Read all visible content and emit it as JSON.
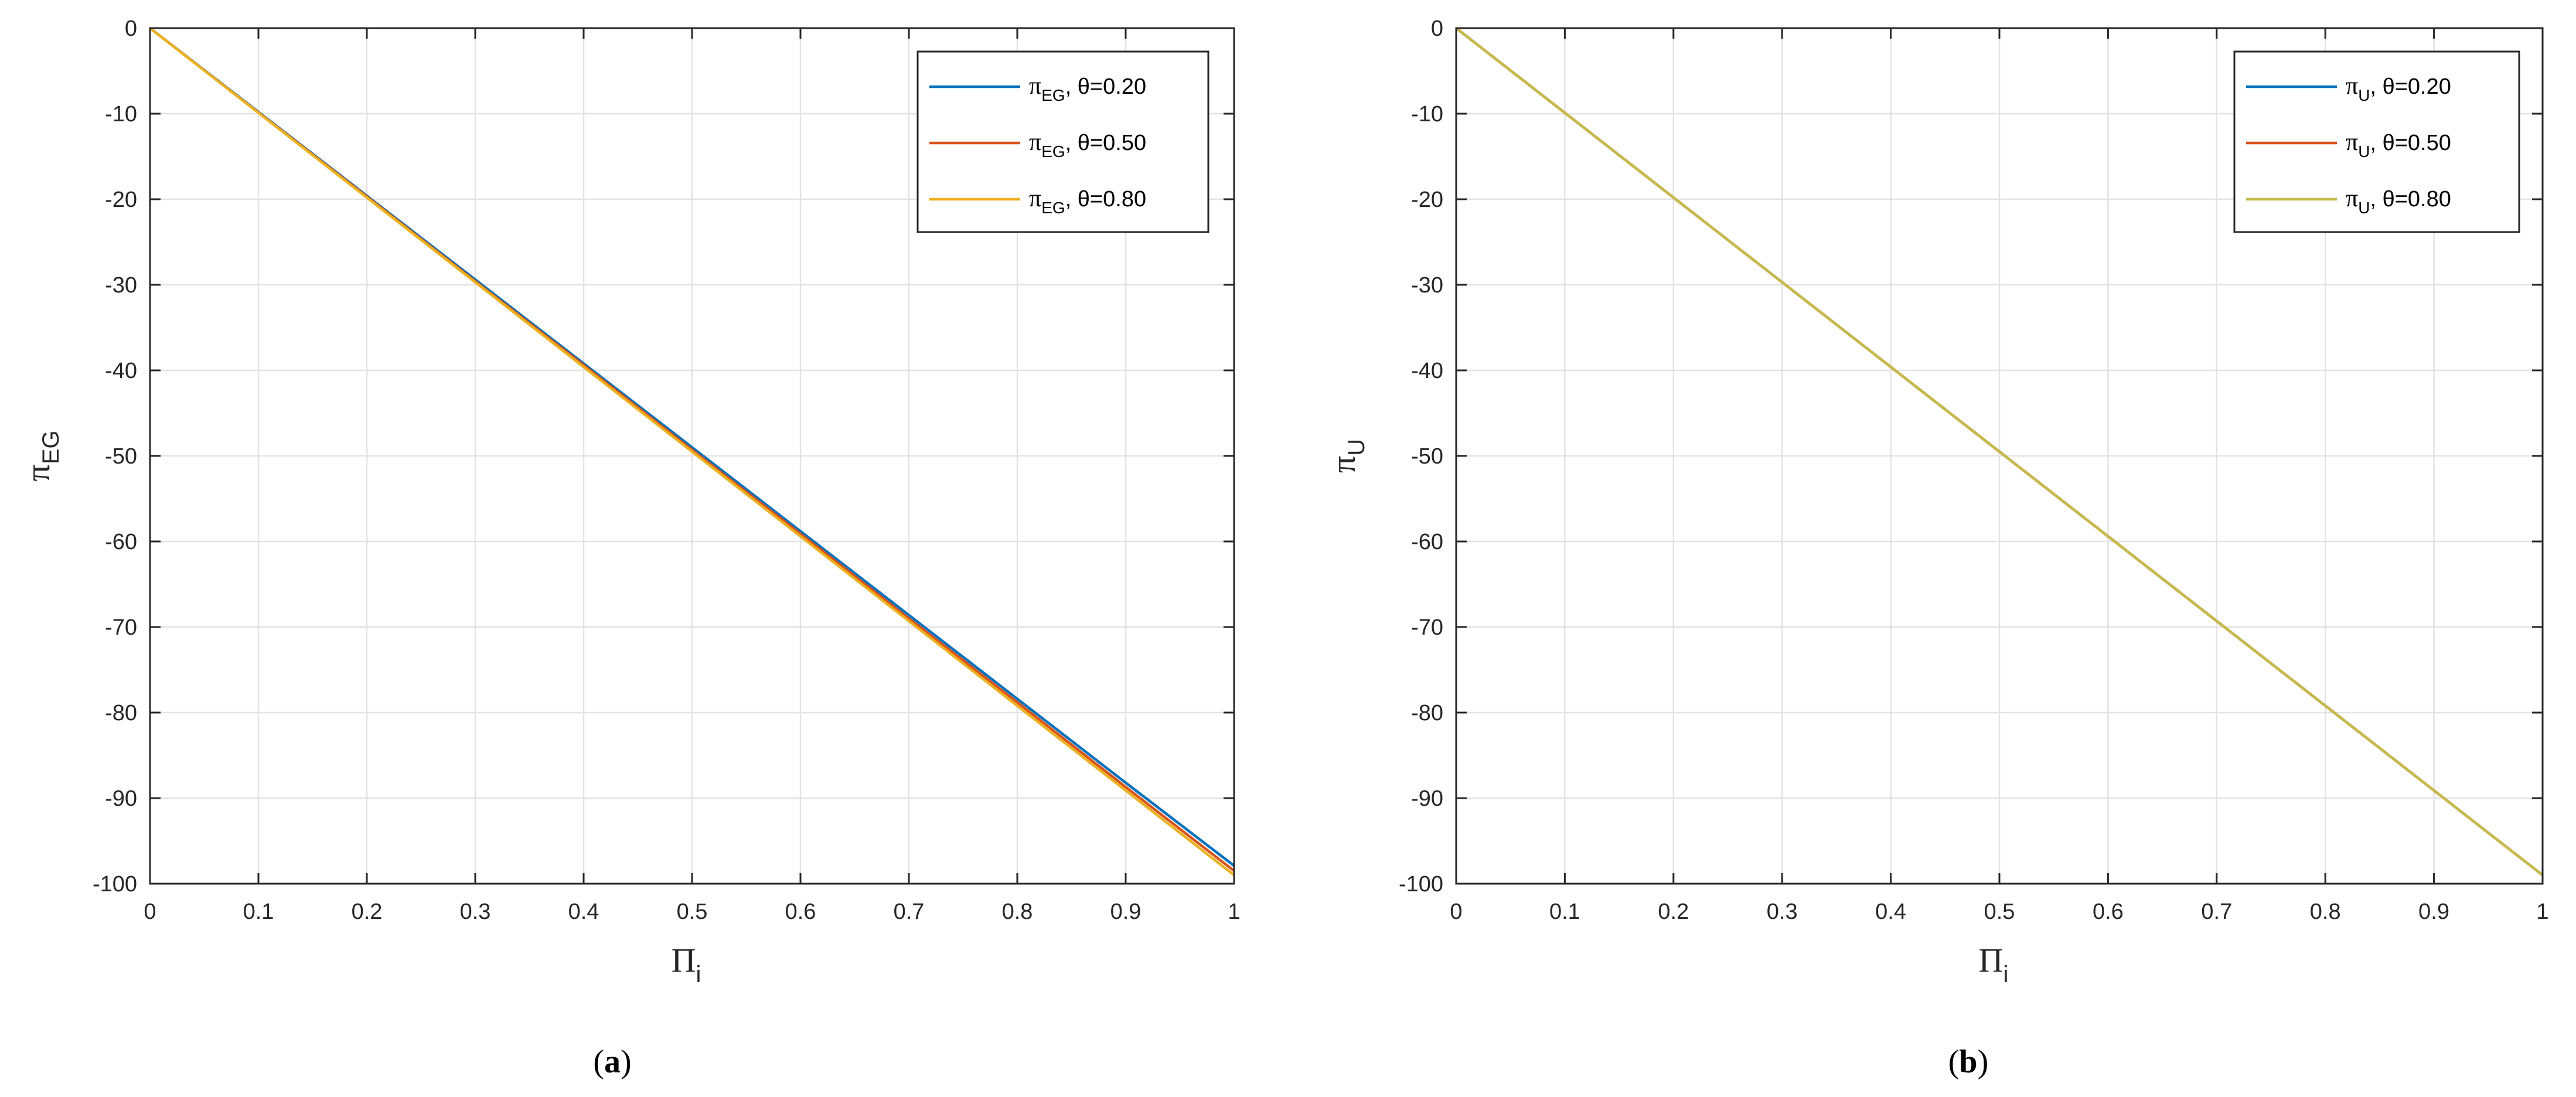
{
  "colors": {
    "series_1": "#0072BD",
    "series_2": "#D95319",
    "series_3": "#EDB120",
    "grid": "#e3e3e3",
    "axis": "#262626",
    "background": "#ffffff"
  },
  "chart_data": [
    {
      "type": "line",
      "caption": {
        "open": "(",
        "letter": "a",
        "close": ")"
      },
      "xlabel": {
        "symbol": "Π",
        "subscript": "i"
      },
      "ylabel": {
        "symbol": "π",
        "subscript": "EG"
      },
      "xlim": [
        0,
        1
      ],
      "ylim": [
        -100,
        0
      ],
      "xticks": [
        "0",
        "0.1",
        "0.2",
        "0.3",
        "0.4",
        "0.5",
        "0.6",
        "0.7",
        "0.8",
        "0.9",
        "1"
      ],
      "yticks": [
        "0",
        "-10",
        "-20",
        "-30",
        "-40",
        "-50",
        "-60",
        "-70",
        "-80",
        "-90",
        "-100"
      ],
      "grid": true,
      "legend_position": "top-right",
      "x": [
        0,
        0.1,
        0.2,
        0.3,
        0.4,
        0.5,
        0.6,
        0.7,
        0.8,
        0.9,
        1
      ],
      "series": [
        {
          "legend_symbol": "π",
          "legend_subscript": "EG",
          "legend_suffix": ", θ=0.20",
          "color": "#0072BD",
          "values": [
            0,
            -9.8,
            -19.6,
            -29.4,
            -39.2,
            -49.0,
            -58.8,
            -68.6,
            -78.4,
            -88.2,
            -97.9
          ]
        },
        {
          "legend_symbol": "π",
          "legend_subscript": "EG",
          "legend_suffix": ", θ=0.50",
          "color": "#D95319",
          "values": [
            0,
            -9.86,
            -19.7,
            -29.6,
            -39.4,
            -49.3,
            -59.1,
            -69.0,
            -78.8,
            -88.7,
            -98.5
          ]
        },
        {
          "legend_symbol": "π",
          "legend_subscript": "EG",
          "legend_suffix": ", θ=0.80",
          "color": "#EDB120",
          "values": [
            0,
            -9.9,
            -19.8,
            -29.7,
            -39.6,
            -49.5,
            -59.4,
            -69.3,
            -79.2,
            -89.1,
            -99.0
          ]
        }
      ]
    },
    {
      "type": "line",
      "caption": {
        "open": "(",
        "letter": "b",
        "close": ")"
      },
      "xlabel": {
        "symbol": "Π",
        "subscript": "i"
      },
      "ylabel": {
        "symbol": "π",
        "subscript": "U"
      },
      "xlim": [
        0,
        1
      ],
      "ylim": [
        -100,
        0
      ],
      "xticks": [
        "0",
        "0.1",
        "0.2",
        "0.3",
        "0.4",
        "0.5",
        "0.6",
        "0.7",
        "0.8",
        "0.9",
        "1"
      ],
      "yticks": [
        "0",
        "-10",
        "-20",
        "-30",
        "-40",
        "-50",
        "-60",
        "-70",
        "-80",
        "-90",
        "-100"
      ],
      "grid": true,
      "legend_position": "top-right",
      "x": [
        0,
        0.1,
        0.2,
        0.3,
        0.4,
        0.5,
        0.6,
        0.7,
        0.8,
        0.9,
        1
      ],
      "series": [
        {
          "legend_symbol": "π",
          "legend_subscript": "U",
          "legend_suffix": ", θ=0.20",
          "color": "#0072BD",
          "values": [
            0,
            -9.9,
            -19.8,
            -29.7,
            -39.6,
            -49.5,
            -59.4,
            -69.3,
            -79.2,
            -89.1,
            -99.0
          ]
        },
        {
          "legend_symbol": "π",
          "legend_subscript": "U",
          "legend_suffix": ", θ=0.50",
          "color": "#D95319",
          "values": [
            0,
            -9.9,
            -19.8,
            -29.7,
            -39.6,
            -49.5,
            -59.4,
            -69.3,
            -79.2,
            -89.1,
            -99.0
          ]
        },
        {
          "legend_symbol": "π",
          "legend_subscript": "U",
          "legend_suffix": ", θ=0.80",
          "color": "#C8BA4A",
          "values": [
            0,
            -9.9,
            -19.8,
            -29.7,
            -39.6,
            -49.5,
            -59.4,
            -69.3,
            -79.2,
            -89.1,
            -99.0
          ]
        }
      ]
    }
  ]
}
